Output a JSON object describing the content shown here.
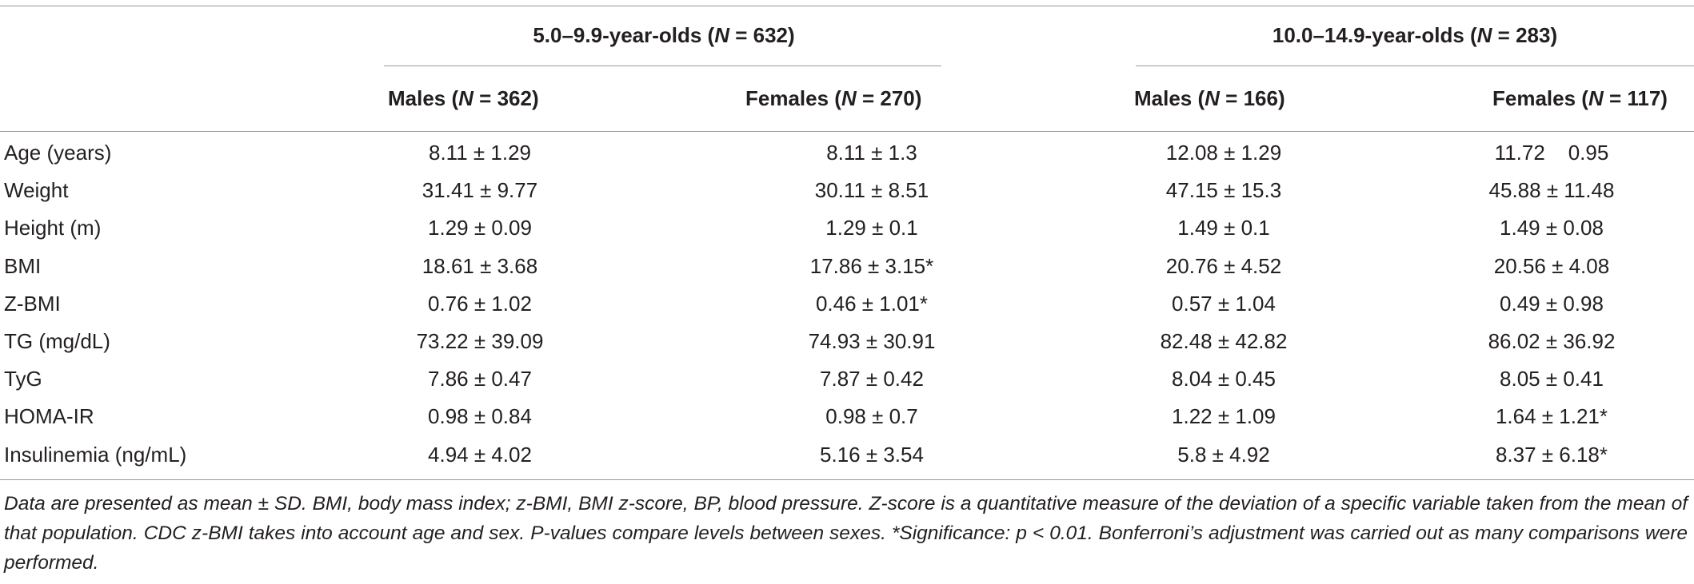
{
  "table": {
    "groups": [
      {
        "label_prefix": "5.0–9.9-year-olds (",
        "n_symbol": "N",
        "label_suffix": " = 632)"
      },
      {
        "label_prefix": "10.0–14.9-year-olds (",
        "n_symbol": "N",
        "label_suffix": " = 283)"
      }
    ],
    "columns": [
      {
        "prefix": "Males (",
        "n_symbol": "N",
        "suffix": " = 362)"
      },
      {
        "prefix": "Females (",
        "n_symbol": "N",
        "suffix": " = 270)"
      },
      {
        "prefix": "Males (",
        "n_symbol": "N",
        "suffix": " = 166)"
      },
      {
        "prefix": "Females (",
        "n_symbol": "N",
        "suffix": " = 117)"
      }
    ],
    "rows": [
      {
        "label": "Age (years)",
        "values": [
          "8.11 ± 1.29",
          "8.11 ± 1.3",
          "12.08 ± 1.29",
          "11.72    0.95"
        ]
      },
      {
        "label": "Weight",
        "values": [
          "31.41 ± 9.77",
          "30.11 ± 8.51",
          "47.15 ± 15.3",
          "45.88 ± 11.48"
        ]
      },
      {
        "label": "Height (m)",
        "values": [
          "1.29 ± 0.09",
          "1.29 ± 0.1",
          "1.49 ± 0.1",
          "1.49 ± 0.08"
        ]
      },
      {
        "label": "BMI",
        "values": [
          "18.61 ± 3.68",
          "17.86 ± 3.15*",
          "20.76 ± 4.52",
          "20.56 ± 4.08"
        ]
      },
      {
        "label": "Z-BMI",
        "values": [
          "0.76 ± 1.02",
          "0.46 ± 1.01*",
          "0.57 ± 1.04",
          "0.49 ± 0.98"
        ]
      },
      {
        "label": "TG (mg/dL)",
        "values": [
          "73.22 ± 39.09",
          "74.93 ± 30.91",
          "82.48 ± 42.82",
          "86.02 ± 36.92"
        ]
      },
      {
        "label": "TyG",
        "values": [
          "7.86 ± 0.47",
          "7.87 ± 0.42",
          "8.04 ± 0.45",
          "8.05 ± 0.41"
        ]
      },
      {
        "label": "HOMA-IR",
        "values": [
          "0.98 ± 0.84",
          "0.98 ± 0.7",
          "1.22 ± 1.09",
          "1.64 ± 1.21*"
        ]
      },
      {
        "label": "Insulinemia (ng/mL)",
        "values": [
          "4.94 ± 4.02",
          "5.16 ± 3.54",
          "5.8 ± 4.92",
          "8.37 ± 6.18*"
        ]
      }
    ]
  },
  "footnote": "Data are presented as mean ± SD. BMI, body mass index; z-BMI, BMI z-score, BP, blood pressure. Z-score is a quantitative measure of the deviation of a specific variable taken from the mean of that population. CDC z-BMI takes into account age and sex. P-values compare levels between sexes. *Significance: p < 0.01. Bonferroni’s adjustment was carried out as many comparisons were performed."
}
